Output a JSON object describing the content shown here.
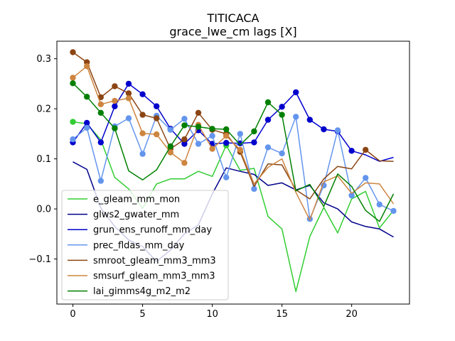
{
  "chart_data": {
    "type": "line",
    "title": "TITICACA",
    "subtitle": "grace_lwe_cm lags [X]",
    "xlabel": "",
    "ylabel": "",
    "xlim": [
      -1.15,
      24.15
    ],
    "ylim": [
      -0.19,
      0.335
    ],
    "xticks": [
      0,
      5,
      10,
      15,
      20
    ],
    "xtick_labels": [
      "0",
      "5",
      "10",
      "15",
      "20"
    ],
    "yticks": [
      -0.1,
      0.0,
      0.1,
      0.2,
      0.3
    ],
    "ytick_labels": [
      "−0.1",
      "0.0",
      "0.1",
      "0.2",
      "0.3"
    ],
    "grid": false,
    "legend_position": "lower-left",
    "x": [
      0,
      1,
      2,
      3,
      4,
      5,
      6,
      7,
      8,
      9,
      10,
      11,
      12,
      13,
      14,
      15,
      16,
      17,
      18,
      19,
      20,
      21,
      22,
      23
    ],
    "series": [
      {
        "name": "e_gleam_mm_mon",
        "color": "#32cd32",
        "values": [
          0.174,
          0.17,
          0.138,
          0.063,
          0.04,
          0.001,
          0.05,
          0.06,
          0.06,
          0.075,
          0.065,
          0.127,
          0.077,
          0.081,
          -0.015,
          -0.04,
          -0.165,
          -0.055,
          0.003,
          -0.048,
          0.02,
          0.035,
          -0.038,
          -0.003
        ],
        "markers": [
          0,
          11
        ]
      },
      {
        "name": "glws2_gwater_mm",
        "color": "#00008b",
        "values": [
          0.094,
          0.079,
          0.002,
          -0.035,
          -0.062,
          -0.075,
          -0.105,
          -0.082,
          -0.05,
          -0.032,
          0.03,
          0.082,
          0.075,
          0.069,
          0.047,
          0.052,
          0.038,
          0.047,
          0.012,
          0.0,
          -0.026,
          -0.035,
          -0.04,
          -0.056
        ],
        "markers": []
      },
      {
        "name": "grun_ens_runoff_mm_day",
        "color": "#0000cd",
        "values": [
          0.133,
          0.172,
          0.133,
          0.205,
          0.25,
          0.229,
          0.205,
          0.16,
          0.13,
          0.157,
          0.13,
          0.132,
          0.131,
          0.133,
          0.178,
          0.204,
          0.233,
          0.178,
          0.159,
          0.155,
          0.116,
          0.108,
          0.095,
          0.103
        ],
        "markers": [
          0,
          1,
          2,
          3,
          4,
          5,
          6,
          7,
          8,
          9,
          10,
          11,
          12,
          13,
          14,
          15,
          16,
          17,
          18,
          19,
          20
        ]
      },
      {
        "name": "prec_fldas_mm_day",
        "color": "#6495ed",
        "values": [
          0.139,
          0.162,
          0.056,
          0.165,
          0.181,
          0.11,
          0.186,
          0.158,
          0.18,
          0.13,
          0.146,
          0.063,
          0.15,
          0.04,
          0.123,
          0.111,
          0.184,
          -0.02,
          0.047,
          0.157,
          0.027,
          0.062,
          0.009,
          -0.004
        ],
        "markers": [
          0,
          1,
          2,
          3,
          4,
          5,
          6,
          7,
          8,
          9,
          10,
          11,
          12,
          13,
          14,
          15,
          16,
          17,
          18,
          19,
          20,
          21,
          22,
          23
        ]
      },
      {
        "name": "smroot_gleam_mm3_mm3",
        "color": "#8b4513",
        "values": [
          0.313,
          0.293,
          0.223,
          0.245,
          0.231,
          0.188,
          0.181,
          0.12,
          0.139,
          0.192,
          0.158,
          0.15,
          0.114,
          0.045,
          0.09,
          0.088,
          0.038,
          0.02,
          0.06,
          0.085,
          0.08,
          0.118,
          0.096,
          0.095
        ],
        "markers": [
          0,
          1,
          2,
          3,
          4,
          5,
          6,
          7,
          8,
          9,
          10,
          11,
          12,
          21
        ]
      },
      {
        "name": "smsurf_gleam_mm3_mm3",
        "color": "#cd853f",
        "values": [
          0.262,
          0.285,
          0.209,
          0.216,
          0.221,
          0.151,
          0.149,
          0.113,
          0.092,
          0.168,
          0.12,
          0.146,
          0.118,
          0.05,
          0.083,
          0.1,
          0.033,
          -0.022,
          0.054,
          0.066,
          0.031,
          0.052,
          0.05,
          0.01
        ],
        "markers": [
          0,
          1,
          2,
          3,
          4,
          5,
          6,
          7,
          8,
          9,
          10,
          11,
          12
        ]
      },
      {
        "name": "lai_gimms4g_m2_m2",
        "color": "#008000",
        "values": [
          0.251,
          0.224,
          0.192,
          0.161,
          0.076,
          0.058,
          0.078,
          0.125,
          0.167,
          0.164,
          0.16,
          0.159,
          0.128,
          0.155,
          0.213,
          0.188,
          0.036,
          0.049,
          0.005,
          0.07,
          0.045,
          -0.003,
          -0.025,
          0.03
        ],
        "markers": [
          0,
          1,
          2,
          3,
          7,
          8,
          9,
          10,
          11,
          13,
          14,
          15
        ]
      }
    ]
  }
}
